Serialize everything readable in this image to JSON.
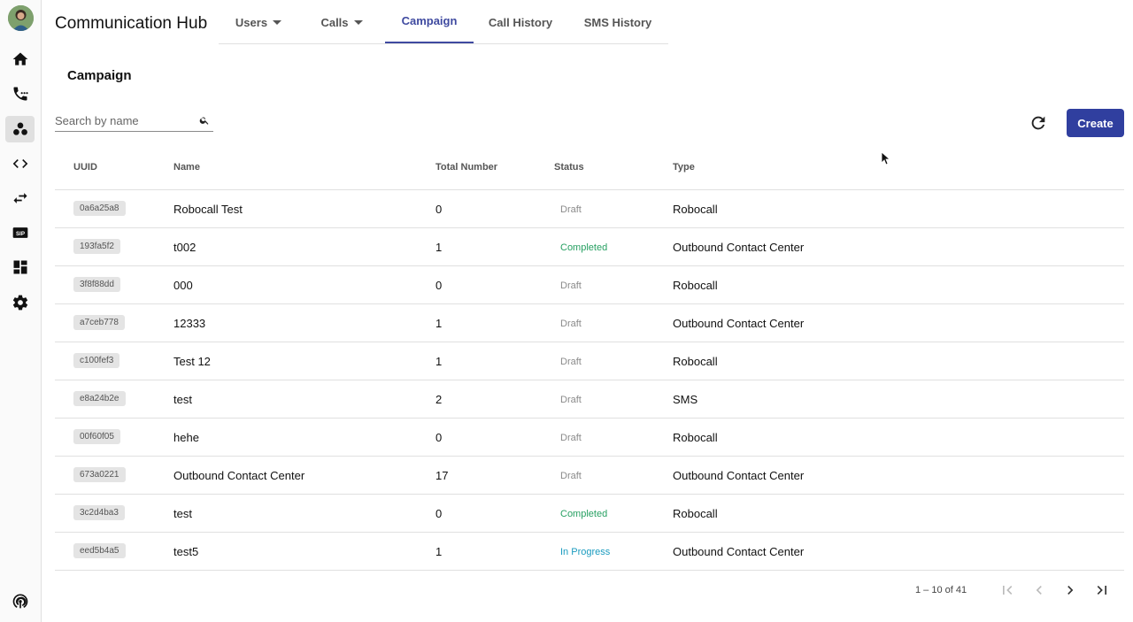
{
  "app": {
    "title": "Communication Hub"
  },
  "sidebar": {
    "items": [
      {
        "icon": "home-icon"
      },
      {
        "icon": "phone-dots-icon"
      },
      {
        "icon": "campaign-icon",
        "active": true
      },
      {
        "icon": "code-icon"
      },
      {
        "icon": "swap-icon"
      },
      {
        "icon": "sip-icon",
        "text": "SIP"
      },
      {
        "icon": "dashboard-icon"
      },
      {
        "icon": "gear-icon"
      }
    ],
    "bottom_icon": "podcast-icon"
  },
  "tabs": [
    {
      "label": "Users",
      "dropdown": true
    },
    {
      "label": "Calls",
      "dropdown": true
    },
    {
      "label": "Campaign",
      "active": true
    },
    {
      "label": "Call History"
    },
    {
      "label": "SMS History"
    }
  ],
  "page": {
    "title": "Campaign"
  },
  "search": {
    "placeholder": "Search by name",
    "value": ""
  },
  "toolbar": {
    "create_label": "Create"
  },
  "table": {
    "headers": [
      "UUID",
      "Name",
      "Total Number",
      "Status",
      "Type"
    ],
    "rows": [
      {
        "uuid": "0a6a25a8",
        "name": "Robocall Test",
        "total": "0",
        "status": "Draft",
        "type": "Robocall"
      },
      {
        "uuid": "193fa5f2",
        "name": "t002",
        "total": "1",
        "status": "Completed",
        "type": "Outbound Contact Center"
      },
      {
        "uuid": "3f8f88dd",
        "name": "000",
        "total": "0",
        "status": "Draft",
        "type": "Robocall"
      },
      {
        "uuid": "a7ceb778",
        "name": "12333",
        "total": "1",
        "status": "Draft",
        "type": "Outbound Contact Center"
      },
      {
        "uuid": "c100fef3",
        "name": "Test 12",
        "total": "1",
        "status": "Draft",
        "type": "Robocall"
      },
      {
        "uuid": "e8a24b2e",
        "name": "test",
        "total": "2",
        "status": "Draft",
        "type": "SMS"
      },
      {
        "uuid": "00f60f05",
        "name": "hehe",
        "total": "0",
        "status": "Draft",
        "type": "Robocall"
      },
      {
        "uuid": "673a0221",
        "name": "Outbound Contact Center",
        "total": "17",
        "status": "Draft",
        "type": "Outbound Contact Center"
      },
      {
        "uuid": "3c2d4ba3",
        "name": "test",
        "total": "0",
        "status": "Completed",
        "type": "Robocall"
      },
      {
        "uuid": "eed5b4a5",
        "name": "test5",
        "total": "1",
        "status": "In Progress",
        "type": "Outbound Contact Center"
      }
    ]
  },
  "pagination": {
    "range": "1 – 10 of 41"
  },
  "colors": {
    "accent": "#303f9f",
    "completed": "#27a062",
    "in_progress": "#1a9bbf",
    "draft": "#8a8a8a"
  }
}
